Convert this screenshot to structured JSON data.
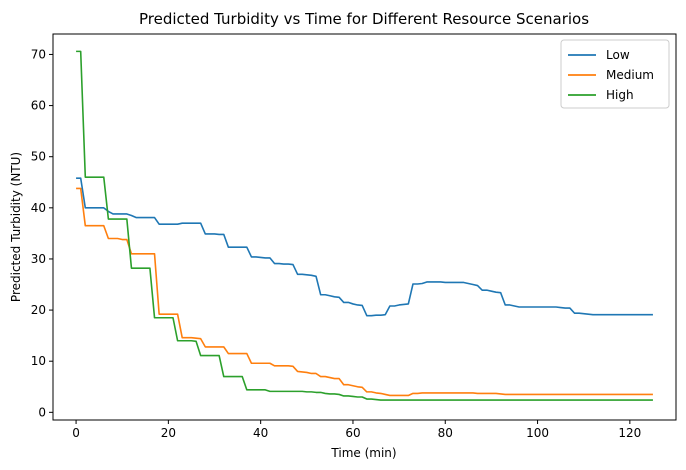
{
  "chart_data": {
    "type": "line",
    "title": "Predicted Turbidity vs Time for Different Resource Scenarios",
    "xlabel": "Time (min)",
    "ylabel": "Predicted Turbidity (NTU)",
    "xlim": [
      -5,
      130
    ],
    "ylim": [
      -1.5,
      74
    ],
    "xticks": [
      0,
      20,
      40,
      60,
      80,
      100,
      120
    ],
    "yticks": [
      0,
      10,
      20,
      30,
      40,
      50,
      60,
      70
    ],
    "grid": false,
    "legend_position": "top-right",
    "series": [
      {
        "name": "Low",
        "color": "#1f77b4",
        "x": [
          0,
          1,
          2,
          3,
          4,
          5,
          6,
          7,
          8,
          9,
          10,
          11,
          12,
          13,
          14,
          15,
          16,
          17,
          18,
          19,
          20,
          21,
          22,
          23,
          24,
          25,
          26,
          27,
          28,
          29,
          30,
          31,
          32,
          33,
          34,
          35,
          36,
          37,
          38,
          39,
          40,
          41,
          42,
          43,
          44,
          45,
          46,
          47,
          48,
          49,
          50,
          51,
          52,
          53,
          54,
          55,
          56,
          57,
          58,
          59,
          60,
          61,
          62,
          63,
          64,
          65,
          66,
          67,
          68,
          69,
          70,
          71,
          72,
          73,
          74,
          75,
          76,
          77,
          78,
          79,
          80,
          81,
          82,
          83,
          84,
          85,
          86,
          87,
          88,
          89,
          90,
          91,
          92,
          93,
          94,
          95,
          96,
          97,
          98,
          99,
          100,
          101,
          102,
          103,
          104,
          105,
          106,
          107,
          108,
          109,
          110,
          111,
          112,
          113,
          114,
          115,
          116,
          117,
          118,
          119,
          120,
          121,
          122,
          123,
          124,
          125
        ],
        "y": [
          45.8,
          45.8,
          40,
          40,
          40,
          40,
          40,
          39.3,
          38.8,
          38.8,
          38.8,
          38.8,
          38.5,
          38.1,
          38.1,
          38.1,
          38.1,
          38.1,
          36.8,
          36.8,
          36.8,
          36.8,
          36.8,
          37,
          37,
          37,
          37,
          37,
          34.9,
          34.9,
          34.9,
          34.8,
          34.8,
          32.3,
          32.3,
          32.3,
          32.3,
          32.3,
          30.4,
          30.4,
          30.3,
          30.2,
          30.2,
          29.1,
          29.1,
          29,
          29,
          28.9,
          27,
          27,
          26.9,
          26.8,
          26.6,
          23,
          23,
          22.8,
          22.6,
          22.5,
          21.5,
          21.5,
          21.2,
          21,
          20.9,
          18.9,
          18.9,
          19,
          19,
          19.1,
          20.8,
          20.8,
          21,
          21.1,
          21.2,
          25.1,
          25.1,
          25.2,
          25.5,
          25.5,
          25.5,
          25.5,
          25.4,
          25.4,
          25.4,
          25.4,
          25.4,
          25.2,
          25,
          24.8,
          23.9,
          23.9,
          23.7,
          23.5,
          23.4,
          21,
          21,
          20.8,
          20.6,
          20.6,
          20.6,
          20.6,
          20.6,
          20.6,
          20.6,
          20.6,
          20.6,
          20.5,
          20.4,
          20.4,
          19.4,
          19.4,
          19.3,
          19.2,
          19.1,
          19.1,
          19.1,
          19.1,
          19.1,
          19.1,
          19.1,
          19.1,
          19.1,
          19.1,
          19.1,
          19.1,
          19.1,
          19.1
        ]
      },
      {
        "name": "Medium",
        "color": "#ff7f0e",
        "x": [
          0,
          1,
          2,
          3,
          4,
          5,
          6,
          7,
          8,
          9,
          10,
          11,
          12,
          13,
          14,
          15,
          16,
          17,
          18,
          19,
          20,
          21,
          22,
          23,
          24,
          25,
          26,
          27,
          28,
          29,
          30,
          31,
          32,
          33,
          34,
          35,
          36,
          37,
          38,
          39,
          40,
          41,
          42,
          43,
          44,
          45,
          46,
          47,
          48,
          49,
          50,
          51,
          52,
          53,
          54,
          55,
          56,
          57,
          58,
          59,
          60,
          61,
          62,
          63,
          64,
          65,
          66,
          67,
          68,
          69,
          70,
          71,
          72,
          73,
          74,
          75,
          76,
          77,
          78,
          79,
          80,
          81,
          82,
          83,
          84,
          85,
          86,
          87,
          88,
          89,
          90,
          91,
          92,
          93,
          94,
          95,
          96,
          97,
          98,
          99,
          100,
          101,
          102,
          103,
          104,
          105,
          106,
          107,
          108,
          109,
          110,
          111,
          112,
          113,
          114,
          115,
          116,
          117,
          118,
          119,
          120,
          121,
          122,
          123,
          124,
          125
        ],
        "y": [
          43.8,
          43.8,
          36.5,
          36.5,
          36.5,
          36.5,
          36.5,
          34,
          34,
          34,
          33.8,
          33.8,
          31,
          31,
          31,
          31,
          31,
          31,
          19.2,
          19.2,
          19.2,
          19.2,
          19.2,
          14.6,
          14.6,
          14.6,
          14.5,
          14.4,
          12.8,
          12.8,
          12.8,
          12.8,
          12.8,
          11.5,
          11.5,
          11.5,
          11.5,
          11.5,
          9.6,
          9.6,
          9.6,
          9.6,
          9.6,
          9.1,
          9.1,
          9.1,
          9.1,
          9,
          8,
          7.9,
          7.8,
          7.6,
          7.6,
          7,
          7,
          6.8,
          6.6,
          6.6,
          5.4,
          5.4,
          5.2,
          5,
          4.9,
          4,
          4,
          3.8,
          3.7,
          3.5,
          3.3,
          3.3,
          3.3,
          3.3,
          3.3,
          3.7,
          3.7,
          3.8,
          3.8,
          3.8,
          3.8,
          3.8,
          3.8,
          3.8,
          3.8,
          3.8,
          3.8,
          3.8,
          3.8,
          3.7,
          3.7,
          3.7,
          3.7,
          3.7,
          3.6,
          3.5,
          3.5,
          3.5,
          3.5,
          3.5,
          3.5,
          3.5,
          3.5,
          3.5,
          3.5,
          3.5,
          3.5,
          3.5,
          3.5,
          3.5,
          3.5,
          3.5,
          3.5,
          3.5,
          3.5,
          3.5,
          3.5,
          3.5,
          3.5,
          3.5,
          3.5,
          3.5,
          3.5,
          3.5,
          3.5,
          3.5,
          3.5,
          3.5
        ]
      },
      {
        "name": "High",
        "color": "#2ca02c",
        "x": [
          0,
          1,
          2,
          3,
          4,
          5,
          6,
          7,
          8,
          9,
          10,
          11,
          12,
          13,
          14,
          15,
          16,
          17,
          18,
          19,
          20,
          21,
          22,
          23,
          24,
          25,
          26,
          27,
          28,
          29,
          30,
          31,
          32,
          33,
          34,
          35,
          36,
          37,
          38,
          39,
          40,
          41,
          42,
          43,
          44,
          45,
          46,
          47,
          48,
          49,
          50,
          51,
          52,
          53,
          54,
          55,
          56,
          57,
          58,
          59,
          60,
          61,
          62,
          63,
          64,
          65,
          66,
          67,
          68,
          69,
          70,
          71,
          72,
          73,
          74,
          75,
          76,
          77,
          78,
          79,
          80,
          81,
          82,
          83,
          84,
          85,
          86,
          87,
          88,
          89,
          90,
          91,
          92,
          93,
          94,
          95,
          96,
          97,
          98,
          99,
          100,
          101,
          102,
          103,
          104,
          105,
          106,
          107,
          108,
          109,
          110,
          111,
          112,
          113,
          114,
          115,
          116,
          117,
          118,
          119,
          120,
          121,
          122,
          123,
          124,
          125
        ],
        "y": [
          70.6,
          70.6,
          46,
          46,
          46,
          46,
          46,
          37.8,
          37.8,
          37.8,
          37.8,
          37.8,
          28.2,
          28.2,
          28.2,
          28.2,
          28.2,
          18.5,
          18.5,
          18.5,
          18.5,
          18.5,
          14,
          14,
          14,
          14,
          13.9,
          11.1,
          11.1,
          11.1,
          11.1,
          11.1,
          7,
          7,
          7,
          7,
          7,
          4.4,
          4.4,
          4.4,
          4.4,
          4.4,
          4.1,
          4.1,
          4.1,
          4.1,
          4.1,
          4.1,
          4.1,
          4.1,
          4,
          4,
          3.9,
          3.9,
          3.7,
          3.6,
          3.6,
          3.5,
          3.2,
          3.2,
          3.1,
          3,
          3,
          2.6,
          2.6,
          2.5,
          2.4,
          2.4,
          2.4,
          2.4,
          2.4,
          2.4,
          2.4,
          2.4,
          2.4,
          2.4,
          2.4,
          2.4,
          2.4,
          2.4,
          2.4,
          2.4,
          2.4,
          2.4,
          2.4,
          2.4,
          2.4,
          2.4,
          2.4,
          2.4,
          2.4,
          2.4,
          2.4,
          2.4,
          2.4,
          2.4,
          2.4,
          2.4,
          2.4,
          2.4,
          2.4,
          2.4,
          2.4,
          2.4,
          2.4,
          2.4,
          2.4,
          2.4,
          2.4,
          2.4,
          2.4,
          2.4,
          2.4,
          2.4,
          2.4,
          2.4,
          2.4,
          2.4,
          2.4,
          2.4,
          2.4,
          2.4,
          2.4,
          2.4,
          2.4,
          2.4
        ]
      }
    ]
  }
}
